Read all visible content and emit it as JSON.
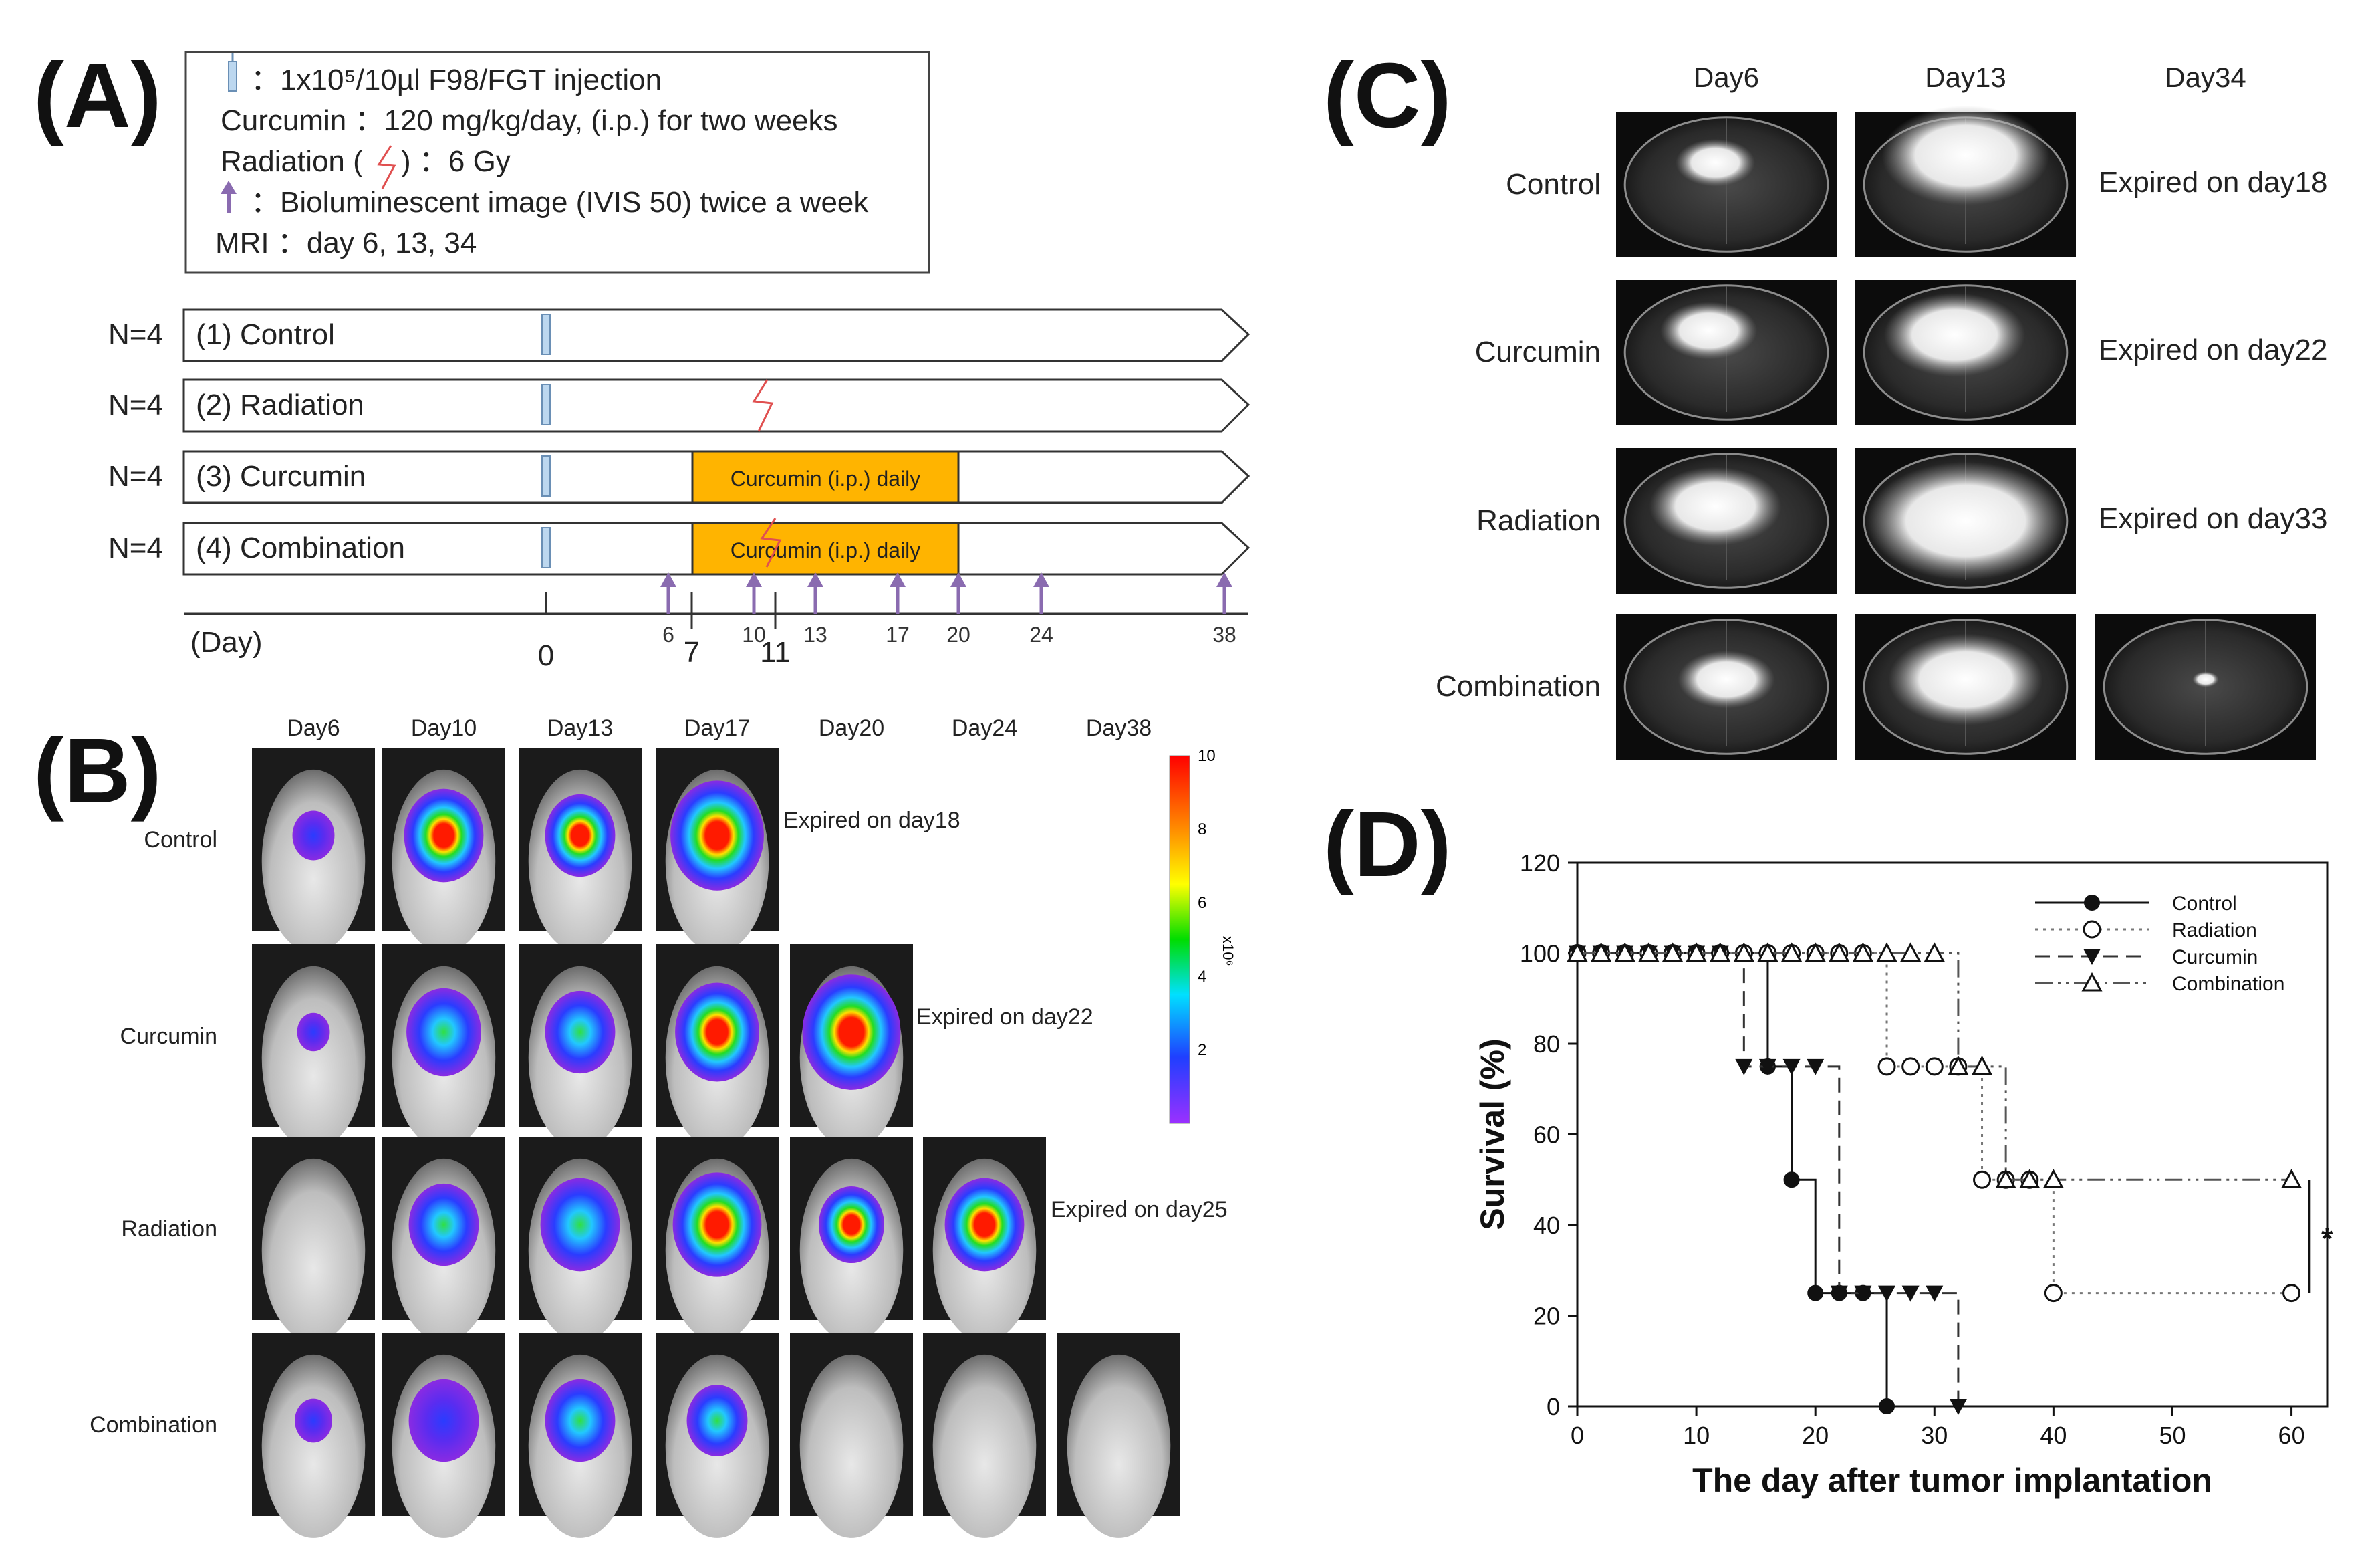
{
  "panels": {
    "a": "(A)",
    "b": "(B)",
    "c": "(C)",
    "d": "(D)"
  },
  "panel_a": {
    "legend": {
      "injection": "：1x10⁵/10µl  F98/FGT injection",
      "curcumin": "Curcumin ：120 mg/kg/day, (i.p.) for two weeks",
      "radiation_prefix": "Radiation (",
      "radiation_suffix": " ) ：6 Gy",
      "bli": "：Bioluminescent image (IVIS 50) twice a week",
      "mri": "MRI ：day 6, 13, 34"
    },
    "groups": [
      {
        "n": "N=4",
        "label": "(1) Control"
      },
      {
        "n": "N=4",
        "label": "(2) Radiation"
      },
      {
        "n": "N=4",
        "label": "(3) Curcumin"
      },
      {
        "n": "N=4",
        "label": "(4) Combination"
      }
    ],
    "treatment_box": "Curcumin (i.p.) daily",
    "day_label": "(Day)",
    "day_ticks": [
      "0",
      "7",
      "11"
    ],
    "imaging_days": [
      "6",
      "10",
      "13",
      "17",
      "20",
      "24",
      "38"
    ]
  },
  "panel_b": {
    "days": [
      "Day6",
      "Day10",
      "Day13",
      "Day17",
      "Day20",
      "Day24",
      "Day38"
    ],
    "rows": [
      {
        "label": "Control",
        "expired": "Expired on day18"
      },
      {
        "label": "Curcumin",
        "expired": "Expired on day22"
      },
      {
        "label": "Radiation",
        "expired": "Expired on day25"
      },
      {
        "label": "Combination",
        "expired": ""
      }
    ],
    "colorbar_ticks": [
      "10",
      "8",
      "6",
      "4",
      "2"
    ],
    "colorbar_unit": "x10⁶"
  },
  "panel_c": {
    "days": [
      "Day6",
      "Day13",
      "Day34"
    ],
    "rows": [
      {
        "label": "Control",
        "expired": "Expired on day18"
      },
      {
        "label": "Curcumin",
        "expired": "Expired on day22"
      },
      {
        "label": "Radiation",
        "expired": "Expired on day33"
      },
      {
        "label": "Combination",
        "expired": ""
      }
    ]
  },
  "chart_data": {
    "type": "line",
    "title": "",
    "xlabel": "The day after tumor implantation",
    "ylabel": "Survival (%)",
    "xlim": [
      0,
      63
    ],
    "ylim": [
      0,
      120
    ],
    "xticks": [
      0,
      10,
      20,
      30,
      40,
      50,
      60
    ],
    "yticks": [
      0,
      20,
      40,
      60,
      80,
      100,
      120
    ],
    "step": true,
    "significance": "*",
    "legend_position": "top-right",
    "series": [
      {
        "name": "Control",
        "marker": "filled-circle",
        "line": "solid",
        "x": [
          0,
          2,
          4,
          6,
          8,
          10,
          12,
          14,
          16,
          18,
          20,
          22,
          24,
          26
        ],
        "y": [
          100,
          100,
          100,
          100,
          100,
          100,
          100,
          100,
          75,
          50,
          25,
          25,
          25,
          0
        ]
      },
      {
        "name": "Radiation",
        "marker": "open-circle",
        "line": "dotted",
        "x": [
          0,
          2,
          4,
          6,
          8,
          10,
          12,
          14,
          16,
          18,
          20,
          22,
          24,
          26,
          28,
          30,
          32,
          34,
          36,
          38,
          40,
          60
        ],
        "y": [
          100,
          100,
          100,
          100,
          100,
          100,
          100,
          100,
          100,
          100,
          100,
          100,
          100,
          75,
          75,
          75,
          75,
          50,
          50,
          50,
          25,
          25
        ]
      },
      {
        "name": "Curcumin",
        "marker": "filled-triangle-down",
        "line": "dashed",
        "x": [
          0,
          2,
          4,
          6,
          8,
          10,
          12,
          14,
          16,
          18,
          20,
          22,
          24,
          26,
          28,
          30,
          32
        ],
        "y": [
          100,
          100,
          100,
          100,
          100,
          100,
          100,
          75,
          75,
          75,
          75,
          25,
          25,
          25,
          25,
          25,
          0
        ]
      },
      {
        "name": "Combination",
        "marker": "open-triangle-up",
        "line": "dash-dot-dot",
        "x": [
          0,
          2,
          4,
          6,
          8,
          10,
          12,
          14,
          16,
          18,
          20,
          22,
          24,
          26,
          28,
          30,
          32,
          34,
          36,
          38,
          40,
          60
        ],
        "y": [
          100,
          100,
          100,
          100,
          100,
          100,
          100,
          100,
          100,
          100,
          100,
          100,
          100,
          100,
          100,
          100,
          75,
          75,
          50,
          50,
          50,
          50
        ]
      }
    ]
  }
}
